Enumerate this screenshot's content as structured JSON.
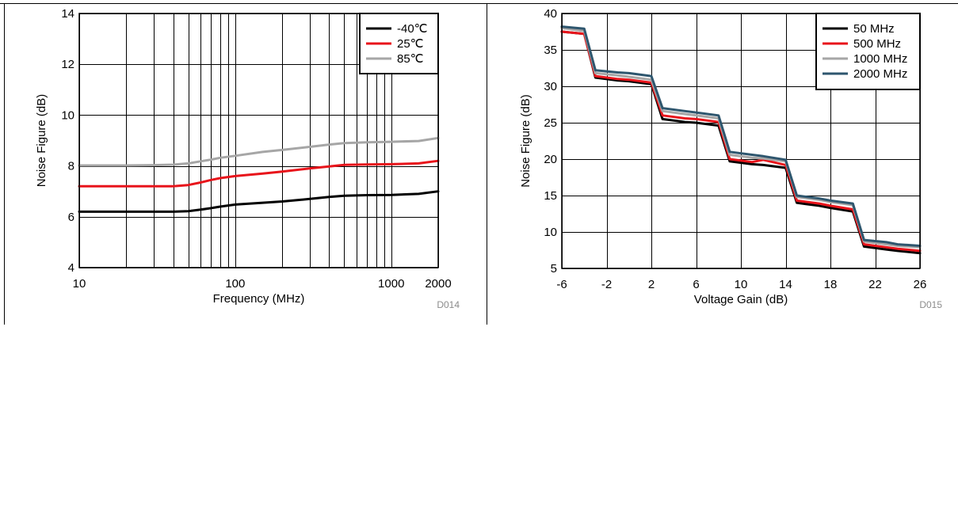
{
  "chart_data": [
    {
      "type": "line",
      "ylabel": "Noise Figure (dB)",
      "xlabel": "Frequency (MHz)",
      "xscale": "log",
      "xlim": [
        10,
        2000
      ],
      "ylim": [
        4,
        14
      ],
      "xticks": [
        10,
        100,
        1000,
        2000
      ],
      "xtick_labels": [
        "10",
        "100",
        "1000",
        "2000"
      ],
      "yticks": [
        4,
        6,
        8,
        10,
        12,
        14
      ],
      "ytick_labels": [
        "4",
        "6",
        "8",
        "10",
        "12",
        "14"
      ],
      "grid": true,
      "legend_position": "top-right",
      "code": "D014",
      "series": [
        {
          "name": "-40℃",
          "color": "#000000",
          "x": [
            10,
            20,
            30,
            40,
            50,
            60,
            70,
            80,
            100,
            150,
            200,
            300,
            400,
            500,
            700,
            1000,
            1500,
            2000
          ],
          "values": [
            6.2,
            6.2,
            6.2,
            6.2,
            6.22,
            6.28,
            6.34,
            6.4,
            6.48,
            6.55,
            6.6,
            6.7,
            6.78,
            6.83,
            6.85,
            6.86,
            6.9,
            7.0
          ]
        },
        {
          "name": "25℃",
          "color": "#e8141b",
          "x": [
            10,
            20,
            30,
            40,
            50,
            60,
            70,
            80,
            100,
            150,
            200,
            300,
            400,
            500,
            700,
            1000,
            1500,
            2000
          ],
          "values": [
            7.2,
            7.2,
            7.2,
            7.2,
            7.25,
            7.35,
            7.45,
            7.52,
            7.6,
            7.7,
            7.78,
            7.9,
            7.98,
            8.04,
            8.06,
            8.07,
            8.1,
            8.2
          ]
        },
        {
          "name": "85℃",
          "color": "#a6a6a6",
          "x": [
            10,
            20,
            30,
            40,
            50,
            60,
            70,
            80,
            100,
            150,
            200,
            300,
            400,
            500,
            700,
            1000,
            1500,
            2000
          ],
          "values": [
            8.02,
            8.02,
            8.03,
            8.05,
            8.1,
            8.18,
            8.25,
            8.32,
            8.4,
            8.55,
            8.63,
            8.75,
            8.84,
            8.9,
            8.93,
            8.95,
            8.98,
            9.1
          ]
        }
      ]
    },
    {
      "type": "line",
      "ylabel": "Noise Figure (dB)",
      "xlabel": "Voltage Gain (dB)",
      "xlim": [
        -6,
        26
      ],
      "ylim": [
        5,
        40
      ],
      "xticks": [
        -6,
        -2,
        2,
        6,
        10,
        14,
        18,
        22,
        26
      ],
      "xtick_labels": [
        "-6",
        "-2",
        "2",
        "6",
        "10",
        "14",
        "18",
        "22",
        "26"
      ],
      "yticks": [
        5,
        10,
        15,
        20,
        25,
        30,
        35,
        40
      ],
      "ytick_labels": [
        "5",
        "10",
        "15",
        "20",
        "25",
        "30",
        "35",
        "40"
      ],
      "grid": true,
      "legend_position": "top-right",
      "code": "D015",
      "series": [
        {
          "name": "50 MHz",
          "color": "#000000",
          "x": [
            -6,
            -4,
            -3,
            -1,
            0,
            2,
            3,
            5,
            6,
            8,
            9,
            11,
            12,
            14,
            15,
            17,
            18,
            20,
            21,
            23,
            24,
            26
          ],
          "values": [
            37.5,
            37.2,
            31.2,
            30.8,
            30.7,
            30.3,
            25.5,
            25.1,
            25.0,
            24.6,
            19.7,
            19.3,
            19.2,
            18.8,
            14.0,
            13.6,
            13.3,
            12.8,
            8.0,
            7.6,
            7.4,
            7.1
          ]
        },
        {
          "name": "500 MHz",
          "color": "#e8141b",
          "x": [
            -6,
            -4,
            -3,
            -1,
            0,
            2,
            3,
            5,
            6,
            8,
            9,
            11,
            12,
            14,
            15,
            17,
            18,
            20,
            21,
            23,
            24,
            26
          ],
          "values": [
            37.5,
            37.2,
            31.4,
            31.0,
            30.9,
            30.5,
            26.0,
            25.6,
            25.5,
            25.1,
            20.0,
            19.6,
            19.9,
            19.2,
            14.3,
            13.9,
            13.6,
            13.1,
            8.3,
            7.9,
            7.7,
            7.4
          ]
        },
        {
          "name": "1000 MHz",
          "color": "#a6a6a6",
          "x": [
            -6,
            -4,
            -3,
            -1,
            0,
            2,
            3,
            5,
            6,
            8,
            9,
            11,
            12,
            14,
            15,
            17,
            18,
            20,
            21,
            23,
            24,
            26
          ],
          "values": [
            38.0,
            37.6,
            31.8,
            31.5,
            31.3,
            30.9,
            26.6,
            26.2,
            26.0,
            25.6,
            20.6,
            20.2,
            20.1,
            19.7,
            14.8,
            14.4,
            14.1,
            13.7,
            8.7,
            8.3,
            8.1,
            7.9
          ]
        },
        {
          "name": "2000 MHz",
          "color": "#2e566e",
          "x": [
            -6,
            -4,
            -3,
            -1,
            0,
            2,
            3,
            5,
            6,
            8,
            9,
            11,
            12,
            14,
            15,
            17,
            18,
            20,
            21,
            23,
            24,
            26
          ],
          "values": [
            38.2,
            37.9,
            32.2,
            31.9,
            31.8,
            31.4,
            27.0,
            26.6,
            26.4,
            26.0,
            21.0,
            20.6,
            20.4,
            19.9,
            15.0,
            14.6,
            14.3,
            13.9,
            8.9,
            8.6,
            8.3,
            8.1
          ]
        }
      ]
    }
  ]
}
